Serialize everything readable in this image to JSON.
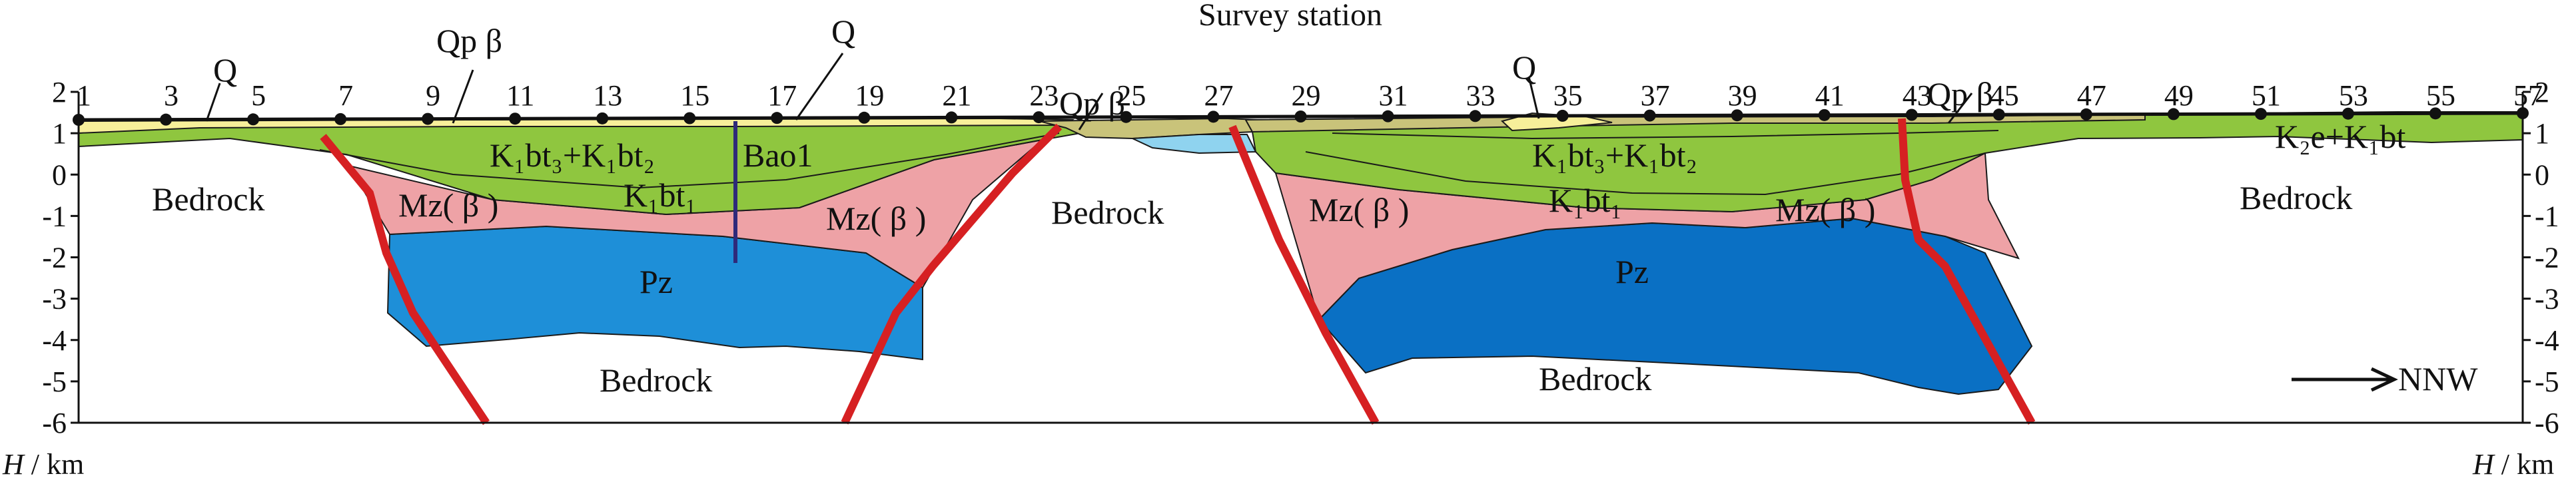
{
  "figure": {
    "title": "Survey station",
    "left_axis_label_var": "H",
    "left_axis_label_unit": "/ km",
    "right_axis_label_var": "H",
    "right_axis_label_unit": "/ km",
    "direction_label": "NNW",
    "depth_ticks": [
      "2",
      "1",
      "0",
      "-1",
      "-2",
      "-3",
      "-4",
      "-5",
      "-6"
    ],
    "stations": [
      "1",
      "3",
      "5",
      "7",
      "9",
      "11",
      "13",
      "15",
      "17",
      "19",
      "21",
      "23",
      "25",
      "27",
      "29",
      "31",
      "33",
      "35",
      "37",
      "39",
      "41",
      "43",
      "45",
      "47",
      "49",
      "51",
      "53",
      "55",
      "57"
    ],
    "labels": {
      "q_1": "Q",
      "q_2": "Q",
      "q_3": "Q",
      "qpb_1": "Qp β",
      "qpb_2": "Qp β",
      "qpb_3": "Qp β",
      "bedrock_1": "Bedrock",
      "bedrock_2": "Bedrock",
      "bedrock_3": "Bedrock",
      "bedrock_4": "Bedrock",
      "bedrock_5": "Bedrock",
      "k1bt32_1": "K₁bt₃+K₁bt₂",
      "k1bt32_2": "K₁bt₃+K₁bt₂",
      "k1bt1_1": "K₁bt₁",
      "k1bt1_2": "K₁bt₁",
      "mz_1": "Mz( β )",
      "mz_2": "Mz( β )",
      "mz_3": "Mz( β )",
      "mz_4": "Mz( β )",
      "pz_1": "Pz",
      "pz_2": "Pz",
      "bao1": "Bao1",
      "k2e": "K₂e+K₁bt"
    },
    "colors": {
      "quaternary": "#f7ef9a",
      "qp_basalt": "#c9c37a",
      "k1bt32": "#8fc63f",
      "k1bt1": "#8fc63f",
      "mz": "#eea2a6",
      "pz": "#1e8fd8",
      "pz_dark": "#0a70c4",
      "water_blue": "#8fd3ef",
      "fault": "#d62022",
      "well": "#2e2a7a"
    }
  }
}
